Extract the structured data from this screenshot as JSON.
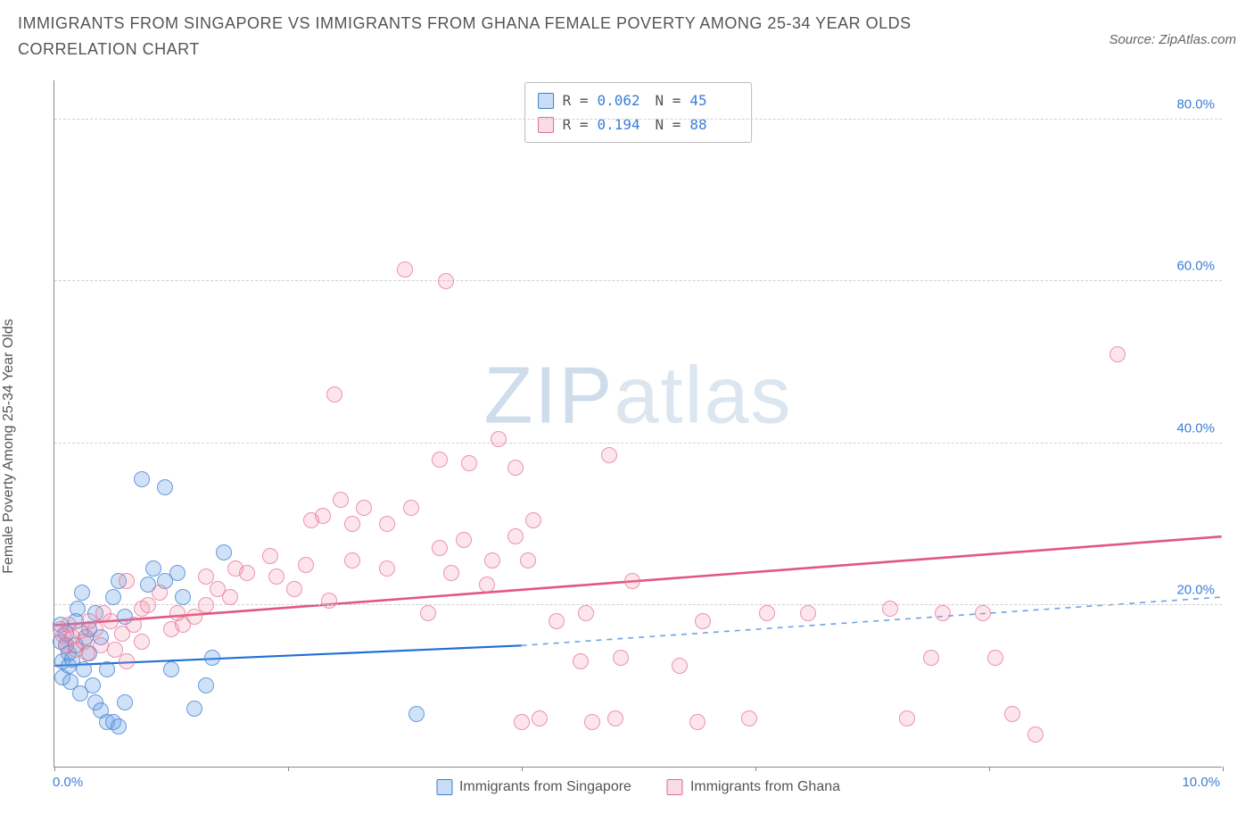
{
  "title": "IMMIGRANTS FROM SINGAPORE VS IMMIGRANTS FROM GHANA FEMALE POVERTY AMONG 25-34 YEAR OLDS CORRELATION CHART",
  "source": "Source: ZipAtlas.com",
  "y_axis_label": "Female Poverty Among 25-34 Year Olds",
  "watermark_a": "ZIP",
  "watermark_b": "atlas",
  "chart": {
    "type": "scatter",
    "x_domain": [
      0,
      10
    ],
    "y_domain": [
      0,
      85
    ],
    "y_ticks": [
      20,
      40,
      60,
      80
    ],
    "y_tick_labels": [
      "20.0%",
      "40.0%",
      "60.0%",
      "80.0%"
    ],
    "x_tick_positions": [
      0,
      2,
      4,
      6,
      8,
      10
    ],
    "x_tick_labels": {
      "first": "0.0%",
      "last": "10.0%"
    },
    "background_color": "#ffffff",
    "grid_color": "#d0d0d0",
    "axis_color": "#888888",
    "tick_label_color": "#3b7dd8"
  },
  "series": [
    {
      "id": "singapore",
      "label": "Immigrants from Singapore",
      "color_fill": "rgba(100,160,230,0.30)",
      "color_stroke": "#4a82d2",
      "marker_radius_px": 9,
      "R": "0.062",
      "N": "45",
      "trend": {
        "x0": 0,
        "y0": 12.5,
        "x1_solid": 4.0,
        "y1_solid": 15.0,
        "x2_dash": 10.0,
        "y2_dash": 21.0,
        "solid_color": "#1f6fd6",
        "dash_color": "#6fa3e3",
        "width": 2.2
      },
      "points": [
        [
          0.05,
          15.5
        ],
        [
          0.05,
          17.5
        ],
        [
          0.07,
          13.0
        ],
        [
          0.07,
          11.0
        ],
        [
          0.1,
          15.0
        ],
        [
          0.1,
          16.5
        ],
        [
          0.12,
          12.5
        ],
        [
          0.12,
          14.0
        ],
        [
          0.14,
          10.5
        ],
        [
          0.15,
          13.2
        ],
        [
          0.18,
          15.0
        ],
        [
          0.18,
          18.0
        ],
        [
          0.2,
          19.5
        ],
        [
          0.24,
          21.5
        ],
        [
          0.25,
          12.0
        ],
        [
          0.27,
          16.0
        ],
        [
          0.3,
          14.0
        ],
        [
          0.33,
          10.0
        ],
        [
          0.35,
          8.0
        ],
        [
          0.4,
          7.0
        ],
        [
          0.45,
          5.5
        ],
        [
          0.5,
          5.5
        ],
        [
          0.55,
          5.0
        ],
        [
          0.6,
          8.0
        ],
        [
          0.45,
          12.0
        ],
        [
          0.3,
          17.0
        ],
        [
          0.35,
          19.0
        ],
        [
          0.5,
          21.0
        ],
        [
          0.55,
          23.0
        ],
        [
          0.8,
          22.5
        ],
        [
          0.85,
          24.5
        ],
        [
          0.95,
          23.0
        ],
        [
          1.0,
          12.0
        ],
        [
          1.05,
          24.0
        ],
        [
          1.1,
          21.0
        ],
        [
          1.2,
          7.2
        ],
        [
          1.3,
          10.0
        ],
        [
          1.35,
          13.5
        ],
        [
          1.45,
          26.5
        ],
        [
          0.75,
          35.5
        ],
        [
          0.95,
          34.5
        ],
        [
          0.6,
          18.5
        ],
        [
          0.4,
          16.0
        ],
        [
          3.1,
          6.5
        ],
        [
          0.22,
          9.0
        ]
      ]
    },
    {
      "id": "ghana",
      "label": "Immigrants from Ghana",
      "color_fill": "rgba(240,140,170,0.22)",
      "color_stroke": "#e06a95",
      "marker_radius_px": 9,
      "R": "0.194",
      "N": "88",
      "trend": {
        "x0": 0,
        "y0": 17.5,
        "x1_solid": 10.0,
        "y1_solid": 28.5,
        "solid_color": "#e2567f",
        "width": 2.6
      },
      "points": [
        [
          0.05,
          17.0
        ],
        [
          0.08,
          16.2
        ],
        [
          0.1,
          15.0
        ],
        [
          0.12,
          17.5
        ],
        [
          0.15,
          16.0
        ],
        [
          0.18,
          14.5
        ],
        [
          0.22,
          16.8
        ],
        [
          0.25,
          15.5
        ],
        [
          0.28,
          14.0
        ],
        [
          0.3,
          18.0
        ],
        [
          0.35,
          17.0
        ],
        [
          0.4,
          15.0
        ],
        [
          0.42,
          19.0
        ],
        [
          0.48,
          18.0
        ],
        [
          0.52,
          14.5
        ],
        [
          0.58,
          16.5
        ],
        [
          0.62,
          13.0
        ],
        [
          0.68,
          17.5
        ],
        [
          0.75,
          15.5
        ],
        [
          0.75,
          19.5
        ],
        [
          0.62,
          23.0
        ],
        [
          0.8,
          20.0
        ],
        [
          0.9,
          21.5
        ],
        [
          1.0,
          17.0
        ],
        [
          1.05,
          19.0
        ],
        [
          1.1,
          17.5
        ],
        [
          1.2,
          18.5
        ],
        [
          1.3,
          20.0
        ],
        [
          1.3,
          23.5
        ],
        [
          1.4,
          22.0
        ],
        [
          1.5,
          21.0
        ],
        [
          1.55,
          24.5
        ],
        [
          1.65,
          24.0
        ],
        [
          1.9,
          23.5
        ],
        [
          1.85,
          26.0
        ],
        [
          2.05,
          22.0
        ],
        [
          2.15,
          25.0
        ],
        [
          2.2,
          30.5
        ],
        [
          2.3,
          31.0
        ],
        [
          2.35,
          20.5
        ],
        [
          2.4,
          46.0
        ],
        [
          2.45,
          33.0
        ],
        [
          2.55,
          25.5
        ],
        [
          2.55,
          30.0
        ],
        [
          2.65,
          32.0
        ],
        [
          2.85,
          24.5
        ],
        [
          2.85,
          30.0
        ],
        [
          3.0,
          61.5
        ],
        [
          3.05,
          32.0
        ],
        [
          3.35,
          60.0
        ],
        [
          3.3,
          27.0
        ],
        [
          3.4,
          24.0
        ],
        [
          3.3,
          38.0
        ],
        [
          3.5,
          28.0
        ],
        [
          3.55,
          37.5
        ],
        [
          3.7,
          22.5
        ],
        [
          3.75,
          25.5
        ],
        [
          3.8,
          40.5
        ],
        [
          3.95,
          28.5
        ],
        [
          3.95,
          37.0
        ],
        [
          4.05,
          25.5
        ],
        [
          4.1,
          30.5
        ],
        [
          4.3,
          18.0
        ],
        [
          4.0,
          5.5
        ],
        [
          4.15,
          6.0
        ],
        [
          4.55,
          19.0
        ],
        [
          4.75,
          38.5
        ],
        [
          4.6,
          5.5
        ],
        [
          4.8,
          6.0
        ],
        [
          4.5,
          13.0
        ],
        [
          4.85,
          13.5
        ],
        [
          4.95,
          23.0
        ],
        [
          5.35,
          12.5
        ],
        [
          5.5,
          5.5
        ],
        [
          5.55,
          18.0
        ],
        [
          5.95,
          6.0
        ],
        [
          6.1,
          19.0
        ],
        [
          6.45,
          19.0
        ],
        [
          7.15,
          19.5
        ],
        [
          7.3,
          6.0
        ],
        [
          7.5,
          13.5
        ],
        [
          7.6,
          19.0
        ],
        [
          7.95,
          19.0
        ],
        [
          8.05,
          13.5
        ],
        [
          8.2,
          6.5
        ],
        [
          8.4,
          4.0
        ],
        [
          9.1,
          51.0
        ],
        [
          3.2,
          19.0
        ]
      ]
    }
  ],
  "legend": {
    "a_label": "Immigrants from Singapore",
    "b_label": "Immigrants from Ghana"
  },
  "stats_labels": {
    "R": "R =",
    "N": "N ="
  }
}
